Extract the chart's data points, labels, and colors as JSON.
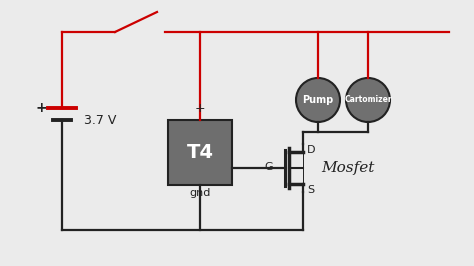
{
  "bg_color": "#ebebeb",
  "wire_color_red": "#cc0000",
  "wire_color_black": "#222222",
  "t4_fill": "#6e6e6e",
  "t4_text": "T4",
  "battery_label": "3.7 V",
  "pump_label": "Pump",
  "cart_label": "Cartomizer",
  "mosfet_label": "Mosfet",
  "g_label": "G",
  "d_label": "D",
  "s_label": "S",
  "plus_label": "+",
  "gnd_label": "gnd",
  "pump_fill": "#707070",
  "cart_fill": "#707070"
}
